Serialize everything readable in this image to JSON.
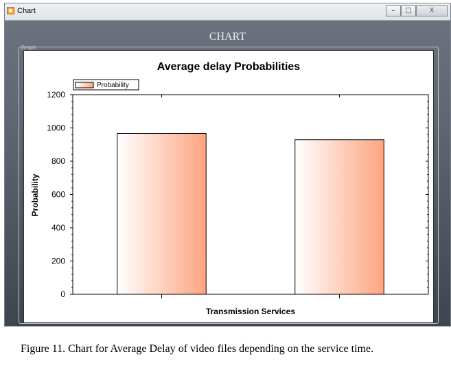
{
  "window": {
    "title": "Chart",
    "minimize_glyph": "–",
    "maximize_glyph": "□",
    "close_glyph": "X"
  },
  "form": {
    "heading": "CHART",
    "group_label": "Graph"
  },
  "chart_data": {
    "type": "bar",
    "title": "Average delay Probabilities",
    "xlabel": "Transmission Services",
    "ylabel": "Probability",
    "categories": [
      "",
      ""
    ],
    "series": [
      {
        "name": "Probability",
        "values": [
          967,
          929
        ]
      }
    ],
    "ylim": [
      0,
      1200
    ],
    "yticks": [
      0,
      200,
      400,
      600,
      800,
      1000,
      1200
    ],
    "legend_position": "top-left",
    "grid": false,
    "bar_gradient": [
      "#ffffff",
      "#fea480"
    ]
  },
  "caption": "Figure 11. Chart for Average Delay of video files depending on the service time."
}
